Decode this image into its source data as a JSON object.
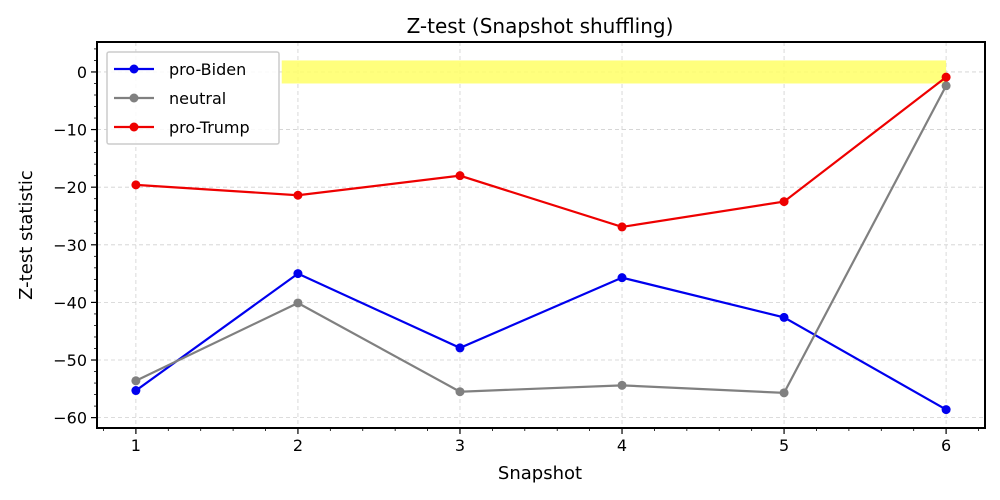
{
  "chart_data": {
    "type": "line",
    "title": "Z-test (Snapshot shuffling)",
    "xlabel": "Snapshot",
    "ylabel": "Z-test statistic",
    "x": [
      1,
      2,
      3,
      4,
      5,
      6
    ],
    "xlim": [
      0.76,
      6.24
    ],
    "ylim": [
      -61.8,
      5.2
    ],
    "xticks": [
      1,
      2,
      3,
      4,
      5,
      6
    ],
    "xtick_labels": [
      "1",
      "2",
      "3",
      "4",
      "5",
      "6"
    ],
    "yticks": [
      0,
      -10,
      -20,
      -30,
      -40,
      -50,
      -60
    ],
    "ytick_labels": [
      "0",
      "−10",
      "−20",
      "−30",
      "−40",
      "−50",
      "−60"
    ],
    "grid": true,
    "legend_position": "top-left",
    "highlight_band": {
      "x": [
        1.9,
        6.0
      ],
      "y": [
        -2.0,
        2.0
      ],
      "color": "#ffff66"
    },
    "series": [
      {
        "name": "pro-Biden",
        "color": "#0000ee",
        "values": [
          -55.3,
          -35.0,
          -47.9,
          -35.7,
          -42.6,
          -58.6
        ]
      },
      {
        "name": "neutral",
        "color": "#808080",
        "values": [
          -53.6,
          -40.1,
          -55.5,
          -54.4,
          -55.7,
          -2.4
        ]
      },
      {
        "name": "pro-Trump",
        "color": "#ee0000",
        "values": [
          -19.6,
          -21.4,
          -18.0,
          -26.9,
          -22.5,
          -0.9
        ]
      }
    ]
  }
}
